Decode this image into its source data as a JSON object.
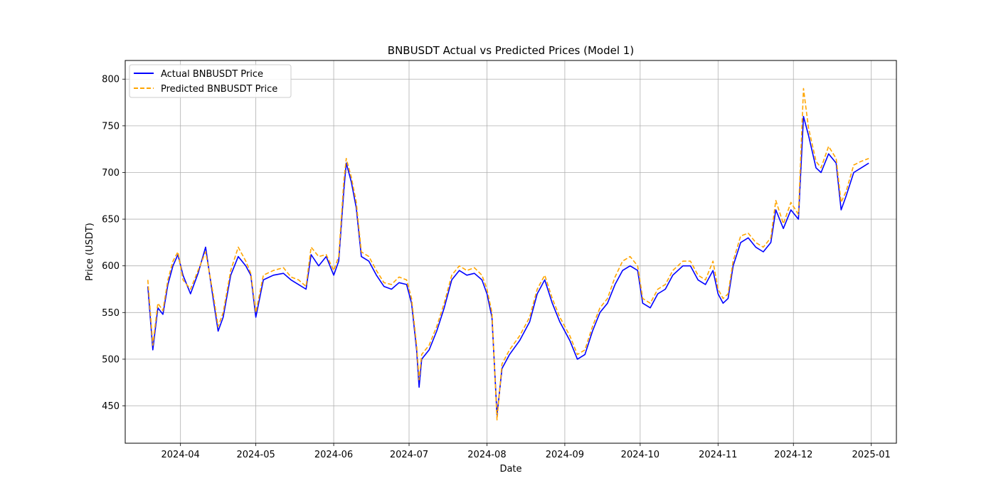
{
  "chart_data": {
    "type": "line",
    "title": "BNBUSDT Actual vs Predicted Prices (Model 1)",
    "xlabel": "Date",
    "ylabel": "Price (USDT)",
    "xlim": [
      "2024-03-10",
      "2025-01-11"
    ],
    "ylim": [
      410,
      820
    ],
    "x_ticks": [
      "2024-04",
      "2024-05",
      "2024-06",
      "2024-07",
      "2024-08",
      "2024-09",
      "2024-10",
      "2024-11",
      "2024-12",
      "2025-01"
    ],
    "y_ticks": [
      450,
      500,
      550,
      600,
      650,
      700,
      750,
      800
    ],
    "grid": true,
    "legend_position": "top-left",
    "series": [
      {
        "name": "Actual BNBUSDT Price",
        "color": "#0000ff",
        "style": "solid",
        "points": [
          [
            "2024-03-19",
            578
          ],
          [
            "2024-03-21",
            510
          ],
          [
            "2024-03-23",
            555
          ],
          [
            "2024-03-25",
            548
          ],
          [
            "2024-03-27",
            580
          ],
          [
            "2024-03-29",
            600
          ],
          [
            "2024-03-31",
            612
          ],
          [
            "2024-04-02",
            590
          ],
          [
            "2024-04-05",
            570
          ],
          [
            "2024-04-08",
            592
          ],
          [
            "2024-04-11",
            620
          ],
          [
            "2024-04-14",
            565
          ],
          [
            "2024-04-16",
            530
          ],
          [
            "2024-04-18",
            545
          ],
          [
            "2024-04-21",
            590
          ],
          [
            "2024-04-24",
            610
          ],
          [
            "2024-04-27",
            600
          ],
          [
            "2024-04-29",
            590
          ],
          [
            "2024-05-01",
            545
          ],
          [
            "2024-05-04",
            585
          ],
          [
            "2024-05-08",
            590
          ],
          [
            "2024-05-12",
            592
          ],
          [
            "2024-05-15",
            585
          ],
          [
            "2024-05-18",
            580
          ],
          [
            "2024-05-21",
            575
          ],
          [
            "2024-05-23",
            612
          ],
          [
            "2024-05-26",
            600
          ],
          [
            "2024-05-29",
            610
          ],
          [
            "2024-06-01",
            590
          ],
          [
            "2024-06-03",
            605
          ],
          [
            "2024-06-05",
            680
          ],
          [
            "2024-06-06",
            710
          ],
          [
            "2024-06-08",
            690
          ],
          [
            "2024-06-10",
            662
          ],
          [
            "2024-06-12",
            610
          ],
          [
            "2024-06-15",
            605
          ],
          [
            "2024-06-18",
            590
          ],
          [
            "2024-06-21",
            578
          ],
          [
            "2024-06-24",
            575
          ],
          [
            "2024-06-27",
            582
          ],
          [
            "2024-06-30",
            580
          ],
          [
            "2024-07-02",
            560
          ],
          [
            "2024-07-04",
            510
          ],
          [
            "2024-07-05",
            470
          ],
          [
            "2024-07-06",
            500
          ],
          [
            "2024-07-09",
            510
          ],
          [
            "2024-07-12",
            530
          ],
          [
            "2024-07-15",
            555
          ],
          [
            "2024-07-18",
            585
          ],
          [
            "2024-07-21",
            595
          ],
          [
            "2024-07-24",
            590
          ],
          [
            "2024-07-27",
            592
          ],
          [
            "2024-07-30",
            585
          ],
          [
            "2024-08-01",
            570
          ],
          [
            "2024-08-03",
            545
          ],
          [
            "2024-08-05",
            440
          ],
          [
            "2024-08-07",
            490
          ],
          [
            "2024-08-10",
            505
          ],
          [
            "2024-08-14",
            520
          ],
          [
            "2024-08-18",
            540
          ],
          [
            "2024-08-21",
            570
          ],
          [
            "2024-08-24",
            585
          ],
          [
            "2024-08-27",
            560
          ],
          [
            "2024-08-30",
            540
          ],
          [
            "2024-09-03",
            520
          ],
          [
            "2024-09-06",
            500
          ],
          [
            "2024-09-09",
            505
          ],
          [
            "2024-09-12",
            530
          ],
          [
            "2024-09-15",
            550
          ],
          [
            "2024-09-18",
            560
          ],
          [
            "2024-09-21",
            580
          ],
          [
            "2024-09-24",
            595
          ],
          [
            "2024-09-27",
            600
          ],
          [
            "2024-09-30",
            595
          ],
          [
            "2024-10-02",
            560
          ],
          [
            "2024-10-05",
            555
          ],
          [
            "2024-10-08",
            570
          ],
          [
            "2024-10-11",
            575
          ],
          [
            "2024-10-14",
            590
          ],
          [
            "2024-10-18",
            600
          ],
          [
            "2024-10-21",
            600
          ],
          [
            "2024-10-24",
            585
          ],
          [
            "2024-10-27",
            580
          ],
          [
            "2024-10-30",
            595
          ],
          [
            "2024-11-01",
            570
          ],
          [
            "2024-11-03",
            560
          ],
          [
            "2024-11-05",
            565
          ],
          [
            "2024-11-07",
            600
          ],
          [
            "2024-11-10",
            625
          ],
          [
            "2024-11-13",
            630
          ],
          [
            "2024-11-16",
            620
          ],
          [
            "2024-11-19",
            615
          ],
          [
            "2024-11-22",
            625
          ],
          [
            "2024-11-24",
            660
          ],
          [
            "2024-11-27",
            640
          ],
          [
            "2024-11-30",
            660
          ],
          [
            "2024-12-03",
            650
          ],
          [
            "2024-12-05",
            760
          ],
          [
            "2024-12-07",
            740
          ],
          [
            "2024-12-10",
            705
          ],
          [
            "2024-12-12",
            700
          ],
          [
            "2024-12-15",
            720
          ],
          [
            "2024-12-18",
            710
          ],
          [
            "2024-12-20",
            660
          ],
          [
            "2024-12-22",
            675
          ],
          [
            "2024-12-25",
            700
          ],
          [
            "2024-12-28",
            705
          ],
          [
            "2024-12-31",
            710
          ]
        ]
      },
      {
        "name": "Predicted BNBUSDT Price",
        "color": "#ffa500",
        "style": "dashed",
        "points": [
          [
            "2024-03-19",
            585
          ],
          [
            "2024-03-21",
            515
          ],
          [
            "2024-03-23",
            560
          ],
          [
            "2024-03-25",
            552
          ],
          [
            "2024-03-27",
            585
          ],
          [
            "2024-03-29",
            605
          ],
          [
            "2024-03-31",
            615
          ],
          [
            "2024-04-02",
            585
          ],
          [
            "2024-04-05",
            575
          ],
          [
            "2024-04-08",
            595
          ],
          [
            "2024-04-11",
            615
          ],
          [
            "2024-04-14",
            570
          ],
          [
            "2024-04-16",
            535
          ],
          [
            "2024-04-18",
            550
          ],
          [
            "2024-04-21",
            595
          ],
          [
            "2024-04-24",
            620
          ],
          [
            "2024-04-27",
            605
          ],
          [
            "2024-04-29",
            592
          ],
          [
            "2024-05-01",
            550
          ],
          [
            "2024-05-04",
            590
          ],
          [
            "2024-05-08",
            595
          ],
          [
            "2024-05-12",
            598
          ],
          [
            "2024-05-15",
            588
          ],
          [
            "2024-05-18",
            585
          ],
          [
            "2024-05-21",
            578
          ],
          [
            "2024-05-23",
            620
          ],
          [
            "2024-05-26",
            610
          ],
          [
            "2024-05-29",
            612
          ],
          [
            "2024-06-01",
            595
          ],
          [
            "2024-06-03",
            610
          ],
          [
            "2024-06-05",
            690
          ],
          [
            "2024-06-06",
            715
          ],
          [
            "2024-06-08",
            695
          ],
          [
            "2024-06-10",
            668
          ],
          [
            "2024-06-12",
            615
          ],
          [
            "2024-06-15",
            610
          ],
          [
            "2024-06-18",
            595
          ],
          [
            "2024-06-21",
            582
          ],
          [
            "2024-06-24",
            580
          ],
          [
            "2024-06-27",
            588
          ],
          [
            "2024-06-30",
            585
          ],
          [
            "2024-07-02",
            565
          ],
          [
            "2024-07-04",
            515
          ],
          [
            "2024-07-05",
            478
          ],
          [
            "2024-07-06",
            505
          ],
          [
            "2024-07-09",
            515
          ],
          [
            "2024-07-12",
            535
          ],
          [
            "2024-07-15",
            560
          ],
          [
            "2024-07-18",
            590
          ],
          [
            "2024-07-21",
            600
          ],
          [
            "2024-07-24",
            595
          ],
          [
            "2024-07-27",
            598
          ],
          [
            "2024-07-30",
            590
          ],
          [
            "2024-08-01",
            575
          ],
          [
            "2024-08-03",
            550
          ],
          [
            "2024-08-05",
            435
          ],
          [
            "2024-08-07",
            495
          ],
          [
            "2024-08-10",
            510
          ],
          [
            "2024-08-14",
            525
          ],
          [
            "2024-08-18",
            545
          ],
          [
            "2024-08-21",
            575
          ],
          [
            "2024-08-24",
            590
          ],
          [
            "2024-08-27",
            565
          ],
          [
            "2024-08-30",
            545
          ],
          [
            "2024-09-03",
            525
          ],
          [
            "2024-09-06",
            505
          ],
          [
            "2024-09-09",
            510
          ],
          [
            "2024-09-12",
            535
          ],
          [
            "2024-09-15",
            555
          ],
          [
            "2024-09-18",
            565
          ],
          [
            "2024-09-21",
            588
          ],
          [
            "2024-09-24",
            605
          ],
          [
            "2024-09-27",
            610
          ],
          [
            "2024-09-30",
            600
          ],
          [
            "2024-10-02",
            565
          ],
          [
            "2024-10-05",
            560
          ],
          [
            "2024-10-08",
            575
          ],
          [
            "2024-10-11",
            580
          ],
          [
            "2024-10-14",
            595
          ],
          [
            "2024-10-18",
            605
          ],
          [
            "2024-10-21",
            605
          ],
          [
            "2024-10-24",
            590
          ],
          [
            "2024-10-27",
            585
          ],
          [
            "2024-10-30",
            605
          ],
          [
            "2024-11-01",
            575
          ],
          [
            "2024-11-03",
            565
          ],
          [
            "2024-11-05",
            570
          ],
          [
            "2024-11-07",
            605
          ],
          [
            "2024-11-10",
            632
          ],
          [
            "2024-11-13",
            635
          ],
          [
            "2024-11-16",
            625
          ],
          [
            "2024-11-19",
            620
          ],
          [
            "2024-11-22",
            630
          ],
          [
            "2024-11-24",
            670
          ],
          [
            "2024-11-27",
            645
          ],
          [
            "2024-11-30",
            668
          ],
          [
            "2024-12-03",
            655
          ],
          [
            "2024-12-05",
            790
          ],
          [
            "2024-12-07",
            748
          ],
          [
            "2024-12-10",
            712
          ],
          [
            "2024-12-12",
            705
          ],
          [
            "2024-12-15",
            728
          ],
          [
            "2024-12-18",
            715
          ],
          [
            "2024-12-20",
            668
          ],
          [
            "2024-12-22",
            680
          ],
          [
            "2024-12-25",
            708
          ],
          [
            "2024-12-28",
            712
          ],
          [
            "2024-12-31",
            715
          ]
        ]
      }
    ]
  }
}
